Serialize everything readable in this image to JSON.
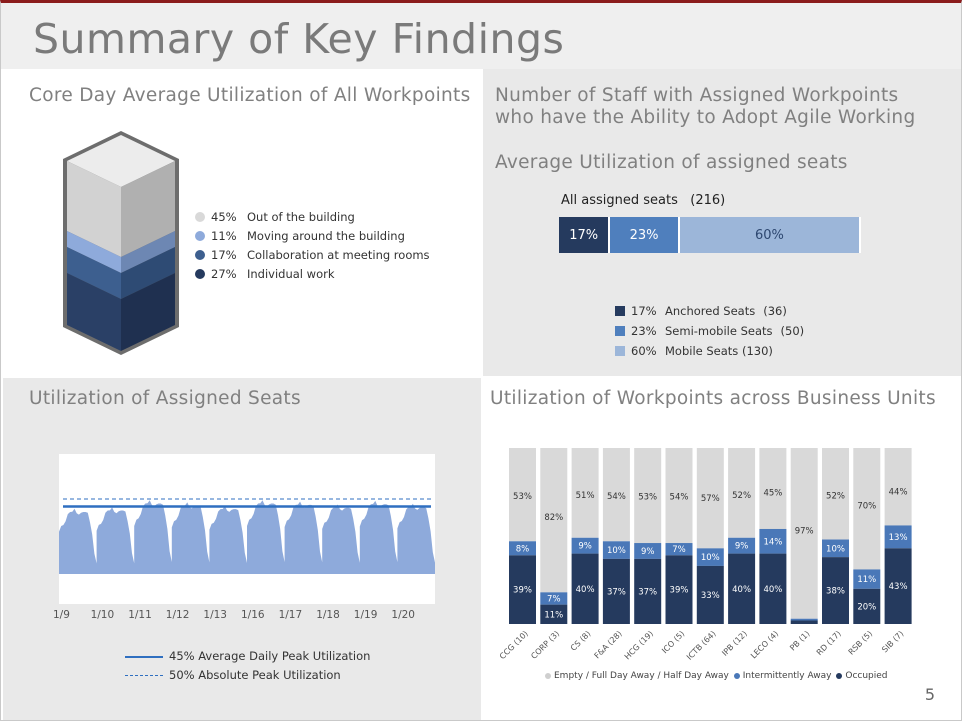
{
  "title": "Summary of Key Findings",
  "page_number": "5",
  "panels": {
    "core_day": {
      "title": "Core Day Average Utilization of All Workpoints",
      "legend": [
        {
          "pct": "45%",
          "label": "Out of the building",
          "color": "#d9d9d9"
        },
        {
          "pct": "11%",
          "label": "Moving around the building",
          "color": "#8eaadb"
        },
        {
          "pct": "17%",
          "label": "Collaboration at meeting rooms",
          "color": "#3d5f8f"
        },
        {
          "pct": "27%",
          "label": "Individual work",
          "color": "#253a5e"
        }
      ]
    },
    "staff": {
      "title_line1": "Number of Staff with Assigned Workpoints",
      "title_line2": "who have the Ability to Adopt Agile Working",
      "subtitle": "Average Utilization of assigned seats",
      "bar_label": "All assigned seats",
      "bar_total": "(216)",
      "legend": [
        {
          "pct": "17%",
          "label": "Anchored Seats",
          "count": "(36)",
          "color": "#253a5e"
        },
        {
          "pct": "23%",
          "label": "Semi-mobile Seats",
          "count": "(50)",
          "color": "#4f7fbd"
        },
        {
          "pct": "60%",
          "label": "Mobile Seats (130)",
          "count": "",
          "color": "#9cb6d9"
        }
      ]
    },
    "assigned_util": {
      "title": "Utilization of Assigned Seats",
      "x_ticks": [
        "1/9",
        "1/10",
        "1/11",
        "1/12",
        "1/13",
        "1/16",
        "1/17",
        "1/18",
        "1/19",
        "1/20"
      ],
      "legend_solid": "45% Average Daily Peak Utilization",
      "legend_dashed": "50% Absolute Peak Utilization"
    },
    "business_units": {
      "title": "Utilization of Workpoints across Business Units",
      "legend_empty": "Empty / Full Day Away / Half Day Away",
      "legend_intermittent": "Intermittently Away",
      "legend_occupied": "Occupied"
    }
  },
  "chart_data": [
    {
      "type": "bar",
      "orientation": "horizontal-stacked",
      "categories": [
        "All assigned seats"
      ],
      "series": [
        {
          "name": "Anchored Seats",
          "values": [
            17
          ],
          "color": "#253a5e"
        },
        {
          "name": "Semi-mobile Seats",
          "values": [
            23
          ],
          "color": "#4f7fbd"
        },
        {
          "name": "Mobile Seats",
          "values": [
            60
          ],
          "color": "#9cb6d9"
        }
      ],
      "value_labels": [
        "17%",
        "23%",
        "60%"
      ]
    },
    {
      "type": "area",
      "title": "Utilization of Assigned Seats",
      "x_ticks": [
        "1/9",
        "1/10",
        "1/11",
        "1/12",
        "1/13",
        "1/16",
        "1/17",
        "1/18",
        "1/19",
        "1/20"
      ],
      "ylim": [
        0,
        100
      ],
      "average_daily_peak": 45,
      "absolute_peak": 50,
      "daily_profile": [
        32,
        35,
        38,
        40,
        44,
        47,
        48,
        48,
        46,
        45,
        46,
        47,
        47,
        45,
        40,
        30,
        14,
        8
      ],
      "day_peak_scale": [
        0.88,
        0.9,
        1.0,
        0.97,
        0.92,
        1.0,
        0.98,
        0.94,
        0.99,
        0.95
      ],
      "color": "#8eaadb",
      "avg_color": "#2f6fc0"
    },
    {
      "type": "bar",
      "orientation": "vertical-stacked",
      "categories": [
        "CCG (10)",
        "CORP (3)",
        "CS (8)",
        "F&A (28)",
        "HCG (19)",
        "ICO (5)",
        "ICTB (64)",
        "IPB (12)",
        "LECO (4)",
        "PB (1)",
        "RD (17)",
        "RSB (5)",
        "SIB (7)"
      ],
      "ylim": [
        0,
        100
      ],
      "series": [
        {
          "name": "Occupied",
          "color": "#253a5e",
          "values": [
            39,
            11,
            40,
            37,
            37,
            39,
            33,
            40,
            40,
            2,
            38,
            20,
            43
          ],
          "labels": [
            "39%",
            "11%",
            "40%",
            "37%",
            "37%",
            "39%",
            "33%",
            "40%",
            "40%",
            "",
            "38%",
            "20%",
            "43%"
          ]
        },
        {
          "name": "Intermittently Away",
          "color": "#4a78b8",
          "values": [
            8,
            7,
            9,
            10,
            9,
            7,
            10,
            9,
            14,
            1,
            10,
            11,
            13
          ],
          "labels": [
            "8%",
            "7%",
            "9%",
            "10%",
            "9%",
            "7%",
            "10%",
            "9%",
            "14%",
            "",
            "10%",
            "11%",
            "13%"
          ]
        },
        {
          "name": "Empty / Full Day Away / Half Day Away",
          "color": "#d9d9d9",
          "values": [
            53,
            82,
            51,
            54,
            53,
            54,
            57,
            52,
            45,
            97,
            52,
            70,
            44
          ],
          "labels": [
            "53%",
            "82%",
            "51%",
            "54%",
            "53%",
            "54%",
            "57%",
            "52%",
            "45%",
            "97%",
            "52%",
            "70%",
            "44%"
          ]
        }
      ]
    }
  ]
}
